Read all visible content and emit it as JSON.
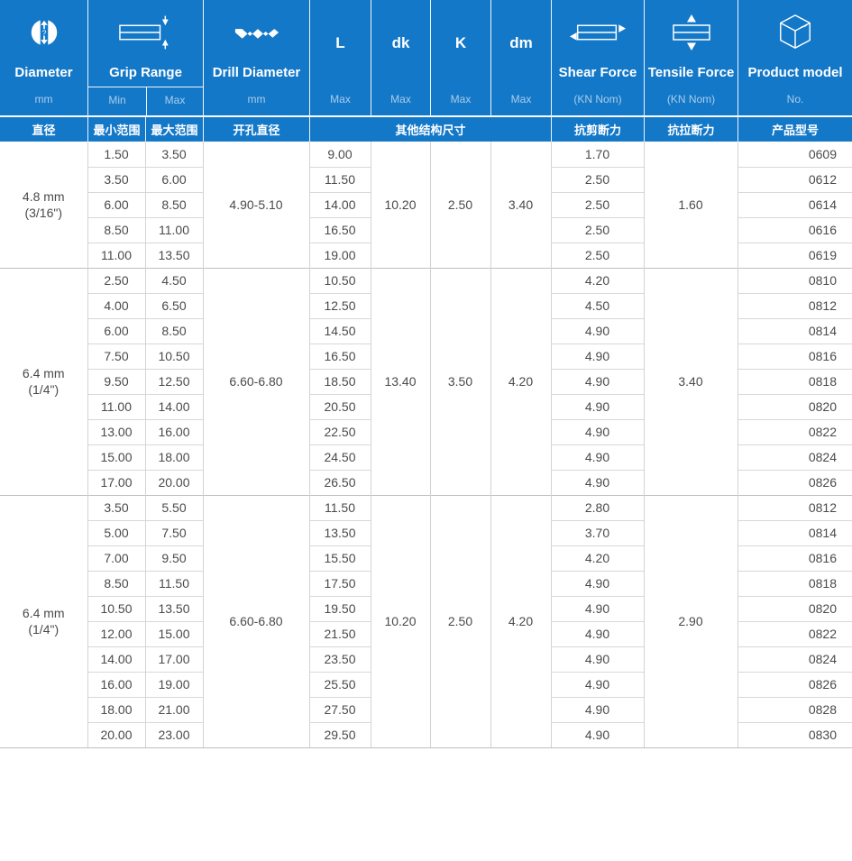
{
  "theme": {
    "header_blue": "#1478c8",
    "header_subtext": "#a9cdeb",
    "body_text": "#4a4a4a",
    "grid_line": "#d3d3d3",
    "group_line": "#bfbfbf"
  },
  "header": {
    "columns": [
      {
        "label": "Diameter",
        "sub": "mm",
        "icon": "diameter-icon",
        "cn": "直径"
      },
      {
        "label": "Grip Range",
        "icon": "grip-range-icon",
        "min_label": "Min",
        "max_label": "Max",
        "cn_min": "最小范围",
        "cn_max": "最大范围"
      },
      {
        "label": "Drill Diameter",
        "sub": "mm",
        "icon": "drill-icon",
        "cn": "开孔直径"
      },
      {
        "label": "L",
        "sub": "Max"
      },
      {
        "label": "dk",
        "sub": "Max"
      },
      {
        "label": "K",
        "sub": "Max"
      },
      {
        "label": "dm",
        "sub": "Max"
      },
      {
        "label": "Shear Force",
        "sub": "(KN Nom)",
        "icon": "shear-force-icon",
        "cn": "抗剪断力"
      },
      {
        "label": "Tensile Force",
        "sub": "(KN Nom)",
        "icon": "tensile-force-icon",
        "cn": "抗拉断力"
      },
      {
        "label": "Product model",
        "sub": "No.",
        "icon": "product-model-icon",
        "cn": "产品型号"
      }
    ],
    "cn_other_dims": "其他结构尺寸"
  },
  "groups": [
    {
      "diameter": "4.8 mm",
      "diameter_inch": "(3/16\")",
      "drill": "4.90-5.10",
      "dk": "10.20",
      "k": "2.50",
      "dm": "3.40",
      "tensile": "1.60",
      "rows": [
        {
          "min": "1.50",
          "max": "3.50",
          "l": "9.00",
          "shear": "1.70",
          "model": "0609"
        },
        {
          "min": "3.50",
          "max": "6.00",
          "l": "11.50",
          "shear": "2.50",
          "model": "0612"
        },
        {
          "min": "6.00",
          "max": "8.50",
          "l": "14.00",
          "shear": "2.50",
          "model": "0614"
        },
        {
          "min": "8.50",
          "max": "11.00",
          "l": "16.50",
          "shear": "2.50",
          "model": "0616"
        },
        {
          "min": "11.00",
          "max": "13.50",
          "l": "19.00",
          "shear": "2.50",
          "model": "0619"
        }
      ]
    },
    {
      "diameter": "6.4 mm",
      "diameter_inch": "(1/4\")",
      "drill": "6.60-6.80",
      "dk": "13.40",
      "k": "3.50",
      "dm": "4.20",
      "tensile": "3.40",
      "rows": [
        {
          "min": "2.50",
          "max": "4.50",
          "l": "10.50",
          "shear": "4.20",
          "model": "0810"
        },
        {
          "min": "4.00",
          "max": "6.50",
          "l": "12.50",
          "shear": "4.50",
          "model": "0812"
        },
        {
          "min": "6.00",
          "max": "8.50",
          "l": "14.50",
          "shear": "4.90",
          "model": "0814"
        },
        {
          "min": "7.50",
          "max": "10.50",
          "l": "16.50",
          "shear": "4.90",
          "model": "0816"
        },
        {
          "min": "9.50",
          "max": "12.50",
          "l": "18.50",
          "shear": "4.90",
          "model": "0818"
        },
        {
          "min": "11.00",
          "max": "14.00",
          "l": "20.50",
          "shear": "4.90",
          "model": "0820"
        },
        {
          "min": "13.00",
          "max": "16.00",
          "l": "22.50",
          "shear": "4.90",
          "model": "0822"
        },
        {
          "min": "15.00",
          "max": "18.00",
          "l": "24.50",
          "shear": "4.90",
          "model": "0824"
        },
        {
          "min": "17.00",
          "max": "20.00",
          "l": "26.50",
          "shear": "4.90",
          "model": "0826"
        }
      ]
    },
    {
      "diameter": "6.4 mm",
      "diameter_inch": "(1/4\")",
      "drill": "6.60-6.80",
      "dk": "10.20",
      "k": "2.50",
      "dm": "4.20",
      "tensile": "2.90",
      "rows": [
        {
          "min": "3.50",
          "max": "5.50",
          "l": "11.50",
          "shear": "2.80",
          "model": "0812"
        },
        {
          "min": "5.00",
          "max": "7.50",
          "l": "13.50",
          "shear": "3.70",
          "model": "0814"
        },
        {
          "min": "7.00",
          "max": "9.50",
          "l": "15.50",
          "shear": "4.20",
          "model": "0816"
        },
        {
          "min": "8.50",
          "max": "11.50",
          "l": "17.50",
          "shear": "4.90",
          "model": "0818"
        },
        {
          "min": "10.50",
          "max": "13.50",
          "l": "19.50",
          "shear": "4.90",
          "model": "0820"
        },
        {
          "min": "12.00",
          "max": "15.00",
          "l": "21.50",
          "shear": "4.90",
          "model": "0822"
        },
        {
          "min": "14.00",
          "max": "17.00",
          "l": "23.50",
          "shear": "4.90",
          "model": "0824"
        },
        {
          "min": "16.00",
          "max": "19.00",
          "l": "25.50",
          "shear": "4.90",
          "model": "0826"
        },
        {
          "min": "18.00",
          "max": "21.00",
          "l": "27.50",
          "shear": "4.90",
          "model": "0828"
        },
        {
          "min": "20.00",
          "max": "23.00",
          "l": "29.50",
          "shear": "4.90",
          "model": "0830"
        }
      ]
    }
  ]
}
